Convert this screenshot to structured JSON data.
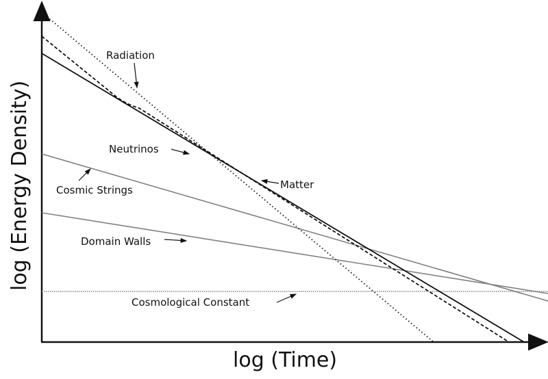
{
  "axes": {
    "x_label": "log (Time)",
    "y_label": "log (Energy Density)"
  },
  "curves": [
    {
      "id": "radiation",
      "label": "Radiation",
      "style": "dotted",
      "color": "#111111"
    },
    {
      "id": "neutrinos",
      "label": "Neutrinos",
      "style": "dashed",
      "color": "#111111"
    },
    {
      "id": "matter",
      "label": "Matter",
      "style": "solid",
      "color": "#111111"
    },
    {
      "id": "cosmic-strings",
      "label": "Cosmic Strings",
      "style": "solid",
      "color": "#808080"
    },
    {
      "id": "domain-walls",
      "label": "Domain Walls",
      "style": "solid",
      "color": "#808080"
    },
    {
      "id": "cosmological-constant",
      "label": "Cosmological Constant",
      "style": "dotted",
      "color": "#808080"
    }
  ]
}
